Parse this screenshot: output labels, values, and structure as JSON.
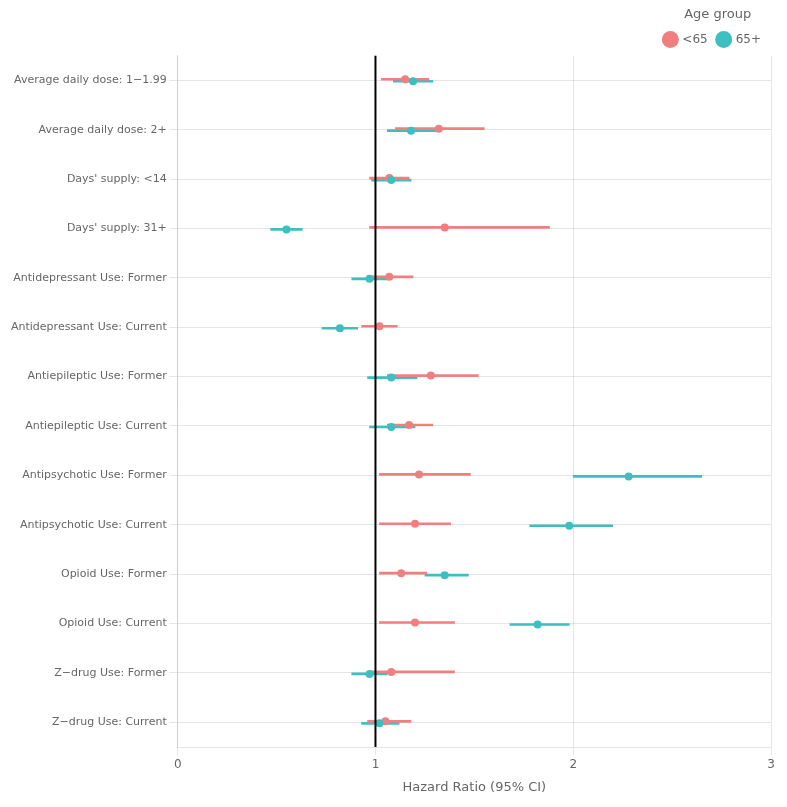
{
  "chart_data": {
    "type": "forest",
    "categories": [
      "Average daily dose: 1−1.99",
      "Average daily dose: 2+",
      "Days' supply: <14",
      "Days' supply: 31+",
      "Antidepressant Use: Former",
      "Antidepressant Use: Current",
      "Antiepileptic Use: Former",
      "Antiepileptic Use: Current",
      "Antipsychotic Use: Former",
      "Antipsychotic Use: Current",
      "Opioid Use: Former",
      "Opioid Use: Current",
      "Z−drug Use: Former",
      "Z−drug Use: Current"
    ],
    "series": [
      {
        "name": "<65",
        "color": "#F08080",
        "values": [
          1.15,
          1.32,
          1.07,
          1.35,
          1.07,
          1.02,
          1.28,
          1.17,
          1.22,
          1.2,
          1.13,
          1.2,
          1.08,
          1.05
        ],
        "ci_low": [
          1.03,
          1.1,
          0.97,
          0.97,
          0.96,
          0.93,
          1.06,
          1.06,
          1.02,
          1.02,
          1.02,
          1.02,
          0.97,
          0.96
        ],
        "ci_high": [
          1.27,
          1.55,
          1.17,
          1.88,
          1.19,
          1.11,
          1.52,
          1.29,
          1.48,
          1.38,
          1.26,
          1.4,
          1.4,
          1.18
        ]
      },
      {
        "name": "65+",
        "color": "#3DBFBF",
        "values": [
          1.19,
          1.18,
          1.08,
          0.55,
          0.97,
          0.82,
          1.08,
          1.08,
          2.28,
          1.98,
          1.35,
          1.82,
          0.97,
          1.02
        ],
        "ci_low": [
          1.09,
          1.06,
          0.98,
          0.47,
          0.88,
          0.73,
          0.96,
          0.97,
          2.0,
          1.78,
          1.25,
          1.68,
          0.88,
          0.93
        ],
        "ci_high": [
          1.29,
          1.32,
          1.18,
          0.63,
          1.06,
          0.91,
          1.21,
          1.2,
          2.65,
          2.2,
          1.47,
          1.98,
          1.06,
          1.12
        ]
      }
    ],
    "xlabel": "Hazard Ratio (95% CI)",
    "xlim": [
      0,
      3
    ],
    "xticks": [
      0,
      1,
      2,
      3
    ],
    "reference_line": 1.0,
    "legend": "upper right",
    "legend_title": "Age group",
    "grid": true
  }
}
